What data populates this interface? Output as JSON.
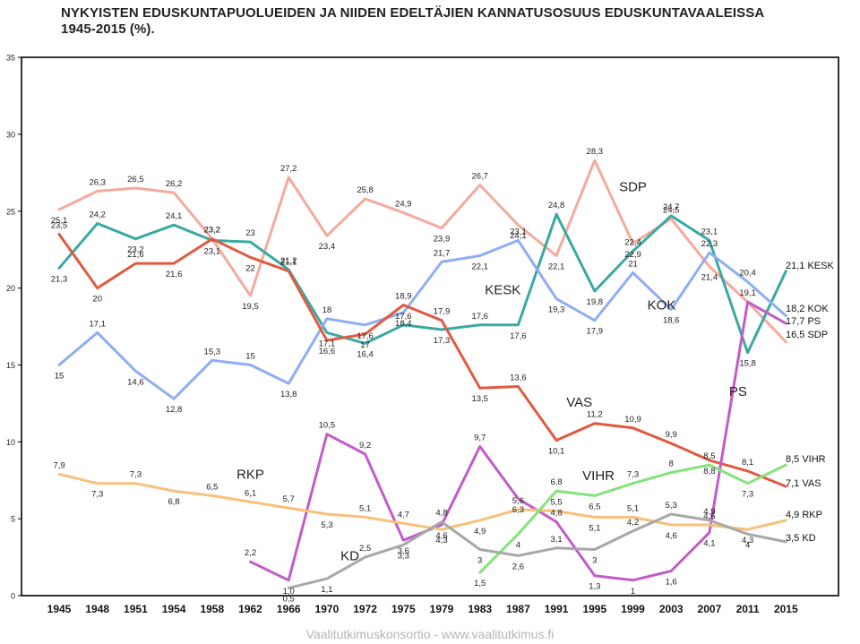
{
  "title_line1": "NYKYISTEN EDUSKUNTAPUOLUEIDEN JA NIIDEN EDELTÄJIEN KANNATUSOSUUS EDUSKUNTAVAALEISSA",
  "title_line2": "1945-2015 (%).",
  "footer": "Vaalitutkimuskonsortio - www.vaalitutkimus.fi",
  "chart_data": {
    "type": "line",
    "categories": [
      "1945",
      "1948",
      "1951",
      "1954",
      "1958",
      "1962",
      "1966",
      "1970",
      "1972",
      "1975",
      "1979",
      "1983",
      "1987",
      "1991",
      "1995",
      "1999",
      "2003",
      "2007",
      "2011",
      "2015"
    ],
    "yticks": [
      "0",
      "5",
      "10",
      "15",
      "20",
      "25",
      "30",
      "35"
    ],
    "ylim": [
      0,
      35
    ],
    "grid": false,
    "series": [
      {
        "name": "SDP",
        "color": "#f4aa9c",
        "values": [
          25.1,
          26.3,
          26.5,
          26.2,
          23.2,
          19.5,
          27.2,
          23.4,
          25.8,
          24.9,
          23.9,
          26.7,
          24.1,
          22.1,
          28.3,
          22.9,
          24.5,
          21.4,
          19.1,
          16.5
        ],
        "labels": [
          "25,1",
          "26,3",
          "26,5",
          "26,2",
          "23,2",
          "19,5",
          "27,2",
          "23,4",
          "25,8",
          "24,9",
          "23,9",
          "26,7",
          "24,1",
          "22,1",
          "28,3",
          "22,9",
          "24,5",
          "21,4",
          "19,1",
          "16,5"
        ],
        "end_label": "16,5 SDP",
        "name_label": {
          "text": "SDP",
          "cat": 15,
          "y": 26.3
        }
      },
      {
        "name": "KESK",
        "color": "#3aa9a3",
        "values": [
          21.3,
          24.2,
          23.2,
          24.1,
          23.1,
          23.0,
          21.2,
          17.1,
          16.4,
          17.6,
          17.3,
          17.6,
          17.6,
          24.8,
          19.8,
          22.4,
          24.7,
          23.1,
          15.8,
          21.1
        ],
        "labels": [
          "21,3",
          "24,2",
          "23,2",
          "24,1",
          "23,1",
          "23",
          "21,2",
          "17,1",
          "16,4",
          "17,6",
          "17,3",
          "17,6",
          "17,6",
          "24,8",
          "19,8",
          "22,4",
          "24,7",
          "23,1",
          "15,8",
          "21,1"
        ],
        "end_label": "21,1 KESK",
        "name_label": {
          "text": "KESK",
          "cat": 11.6,
          "y": 19.6
        }
      },
      {
        "name": "KOK",
        "color": "#8eaef2",
        "values": [
          15.0,
          17.1,
          14.6,
          12.8,
          15.3,
          15.0,
          13.8,
          18.0,
          17.6,
          18.4,
          21.7,
          22.1,
          23.1,
          19.3,
          17.9,
          21.0,
          18.6,
          22.3,
          20.4,
          18.2
        ],
        "labels": [
          "15",
          "17,1",
          "14,6",
          "12,8",
          "15,3",
          "15",
          "13,8",
          "18",
          "17,6",
          "18,4",
          "21,7",
          "22,1",
          "23,1",
          "19,3",
          "17,9",
          "21",
          "18,6",
          "22,3",
          "20,4",
          "18,2"
        ],
        "end_label": "18,2 KOK",
        "name_label": {
          "text": "KOK",
          "cat": 15.75,
          "y": 18.6
        }
      },
      {
        "name": "VAS",
        "color": "#e05a40",
        "values": [
          23.5,
          20.0,
          21.6,
          21.6,
          23.2,
          22.0,
          21.1,
          16.6,
          17.0,
          18.9,
          17.9,
          13.5,
          13.6,
          10.1,
          11.2,
          10.9,
          9.9,
          8.8,
          8.1,
          7.1
        ],
        "labels": [
          "23,5",
          "20",
          "21,6",
          "21,6",
          "23,2",
          "22",
          "21,1",
          "16,6",
          "17",
          "18,9",
          "17,9",
          "13,5",
          "13,6",
          "10,1",
          "11,2",
          "10,9",
          "9,9",
          "8,8",
          "8,1",
          "7,1"
        ],
        "end_label": "7,1 VAS",
        "name_label": {
          "text": "VAS",
          "cat": 13.6,
          "y": 12.3
        }
      },
      {
        "name": "PS",
        "color": "#c15cc9",
        "values": [
          null,
          null,
          null,
          null,
          null,
          2.2,
          1.0,
          10.5,
          9.2,
          3.6,
          4.6,
          9.7,
          6.3,
          4.8,
          1.3,
          1.0,
          1.6,
          4.1,
          19.1,
          17.7
        ],
        "labels": [
          null,
          null,
          null,
          null,
          null,
          "2,2",
          "1,0",
          "10,5",
          "9,2",
          "3,6",
          "4,6",
          "9,7",
          "6,3",
          "4,8",
          "1,3",
          "1",
          "1,6",
          "4,1",
          null,
          "17,7"
        ],
        "end_label": "17,7 PS",
        "name_label": {
          "text": "PS",
          "cat": 17.75,
          "y": 13.0
        }
      },
      {
        "name": "RKP",
        "color": "#f8c07a",
        "values": [
          7.9,
          7.3,
          7.3,
          6.8,
          6.5,
          6.1,
          5.7,
          5.3,
          5.1,
          4.7,
          4.3,
          4.9,
          5.6,
          5.5,
          5.1,
          5.1,
          4.6,
          4.6,
          4.3,
          4.9
        ],
        "labels": [
          "7,9",
          "7,3",
          "7,3",
          "6,8",
          "6,5",
          "6,1",
          "5,7",
          "5,3",
          "5,1",
          "4,7",
          "4,3",
          "4,9",
          "5,6",
          "5,5",
          "5,1",
          "5,1",
          "4,6",
          "4,6",
          "4,3",
          "4,9"
        ],
        "end_label": "4,9 RKP",
        "name_label": {
          "text": "RKP",
          "cat": 5.0,
          "y": 7.6
        }
      },
      {
        "name": "VIHR",
        "color": "#86e27a",
        "values": [
          null,
          null,
          null,
          null,
          null,
          null,
          null,
          null,
          null,
          null,
          null,
          1.5,
          4.0,
          6.8,
          6.5,
          7.3,
          8.0,
          8.5,
          7.3,
          8.5
        ],
        "labels": [
          null,
          null,
          null,
          null,
          null,
          null,
          null,
          null,
          null,
          null,
          null,
          "1,5",
          "4",
          "6,8",
          "6,5",
          "7,3",
          "8",
          "8,5",
          "7,3",
          "8,5"
        ],
        "end_label": "8,5 VIHR",
        "name_label": {
          "text": "VIHR",
          "cat": 14.1,
          "y": 7.5
        }
      },
      {
        "name": "KD",
        "color": "#a8a8a8",
        "values": [
          null,
          null,
          null,
          null,
          null,
          null,
          0.5,
          1.1,
          2.5,
          3.3,
          4.8,
          3.0,
          2.6,
          3.1,
          3.0,
          4.2,
          5.3,
          4.9,
          4.0,
          3.5
        ],
        "labels": [
          null,
          null,
          null,
          null,
          null,
          null,
          "0,5",
          "1,1",
          "2,5",
          "3,3",
          "4,8",
          "3",
          "2,6",
          "3,1",
          "3",
          "4,2",
          "5,3",
          "4,9",
          "4",
          "3,5"
        ],
        "end_label": "3,5 KD",
        "name_label": {
          "text": "KD",
          "cat": 7.6,
          "y": 2.3
        }
      }
    ]
  }
}
